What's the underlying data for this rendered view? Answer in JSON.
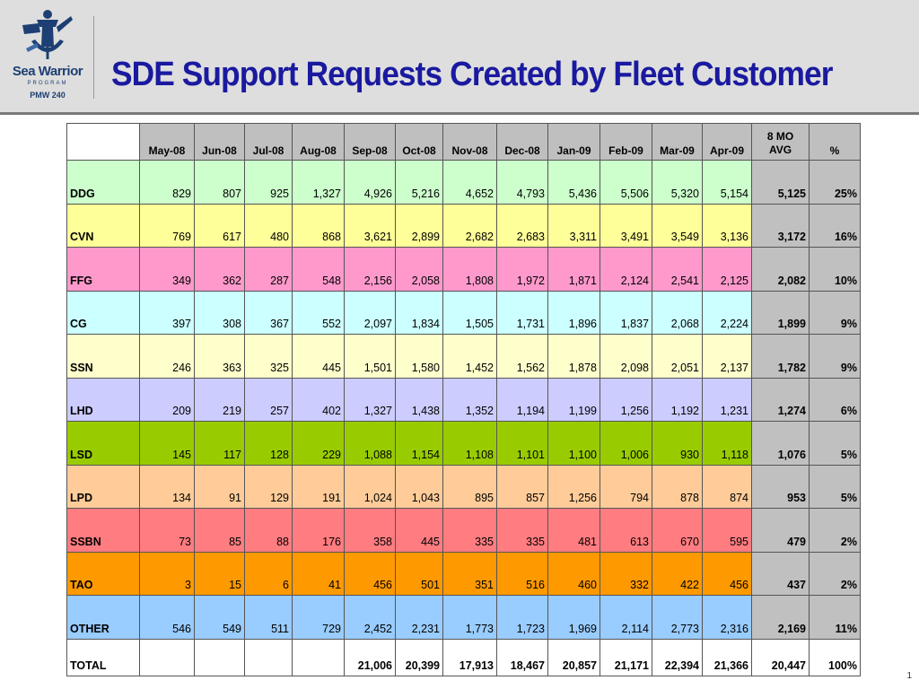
{
  "header": {
    "title": "SDE Support Requests Created by Fleet Customer",
    "logo": {
      "name": "Sea Warrior",
      "subtitle": "PROGRAM",
      "code": "PMW 240",
      "icon": "sailor-anchor-emblem"
    }
  },
  "table": {
    "months": [
      "May-08",
      "Jun-08",
      "Jul-08",
      "Aug-08",
      "Sep-08",
      "Oct-08",
      "Nov-08",
      "Dec-08",
      "Jan-09",
      "Feb-09",
      "Mar-09",
      "Apr-09"
    ],
    "avg_header": [
      "8 MO",
      "AVG"
    ],
    "pct_header": "%",
    "rows": [
      {
        "label": "DDG",
        "color": "#ccffcc",
        "values": [
          "829",
          "807",
          "925",
          "1,327",
          "4,926",
          "5,216",
          "4,652",
          "4,793",
          "5,436",
          "5,506",
          "5,320",
          "5,154"
        ],
        "avg": "5,125",
        "pct": "25%"
      },
      {
        "label": "CVN",
        "color": "#ffff99",
        "values": [
          "769",
          "617",
          "480",
          "868",
          "3,621",
          "2,899",
          "2,682",
          "2,683",
          "3,311",
          "3,491",
          "3,549",
          "3,136"
        ],
        "avg": "3,172",
        "pct": "16%"
      },
      {
        "label": "FFG",
        "color": "#ff99cc",
        "values": [
          "349",
          "362",
          "287",
          "548",
          "2,156",
          "2,058",
          "1,808",
          "1,972",
          "1,871",
          "2,124",
          "2,541",
          "2,125"
        ],
        "avg": "2,082",
        "pct": "10%"
      },
      {
        "label": "CG",
        "color": "#ccffff",
        "values": [
          "397",
          "308",
          "367",
          "552",
          "2,097",
          "1,834",
          "1,505",
          "1,731",
          "1,896",
          "1,837",
          "2,068",
          "2,224"
        ],
        "avg": "1,899",
        "pct": "9%"
      },
      {
        "label": "SSN",
        "color": "#ffffcc",
        "values": [
          "246",
          "363",
          "325",
          "445",
          "1,501",
          "1,580",
          "1,452",
          "1,562",
          "1,878",
          "2,098",
          "2,051",
          "2,137"
        ],
        "avg": "1,782",
        "pct": "9%"
      },
      {
        "label": "LHD",
        "color": "#ccccff",
        "values": [
          "209",
          "219",
          "257",
          "402",
          "1,327",
          "1,438",
          "1,352",
          "1,194",
          "1,199",
          "1,256",
          "1,192",
          "1,231"
        ],
        "avg": "1,274",
        "pct": "6%"
      },
      {
        "label": "LSD",
        "color": "#99cc00",
        "values": [
          "145",
          "117",
          "128",
          "229",
          "1,088",
          "1,154",
          "1,108",
          "1,101",
          "1,100",
          "1,006",
          "930",
          "1,118"
        ],
        "avg": "1,076",
        "pct": "5%"
      },
      {
        "label": "LPD",
        "color": "#ffcc99",
        "values": [
          "134",
          "91",
          "129",
          "191",
          "1,024",
          "1,043",
          "895",
          "857",
          "1,256",
          "794",
          "878",
          "874"
        ],
        "avg": "953",
        "pct": "5%"
      },
      {
        "label": "SSBN",
        "color": "#ff7c80",
        "values": [
          "73",
          "85",
          "88",
          "176",
          "358",
          "445",
          "335",
          "335",
          "481",
          "613",
          "670",
          "595"
        ],
        "avg": "479",
        "pct": "2%"
      },
      {
        "label": "TAO",
        "color": "#ff9900",
        "values": [
          "3",
          "15",
          "6",
          "41",
          "456",
          "501",
          "351",
          "516",
          "460",
          "332",
          "422",
          "456"
        ],
        "avg": "437",
        "pct": "2%"
      },
      {
        "label": "OTHER",
        "color": "#99ccff",
        "values": [
          "546",
          "549",
          "511",
          "729",
          "2,452",
          "2,231",
          "1,773",
          "1,723",
          "1,969",
          "2,114",
          "2,773",
          "2,316"
        ],
        "avg": "2,169",
        "pct": "11%"
      }
    ],
    "total": {
      "label": "TOTAL",
      "values": [
        "",
        "",
        "",
        "",
        "21,006",
        "20,399",
        "17,913",
        "18,467",
        "20,857",
        "21,171",
        "22,394",
        "21,366"
      ],
      "avg": "20,447",
      "pct": "100%"
    }
  },
  "page_number": "1"
}
